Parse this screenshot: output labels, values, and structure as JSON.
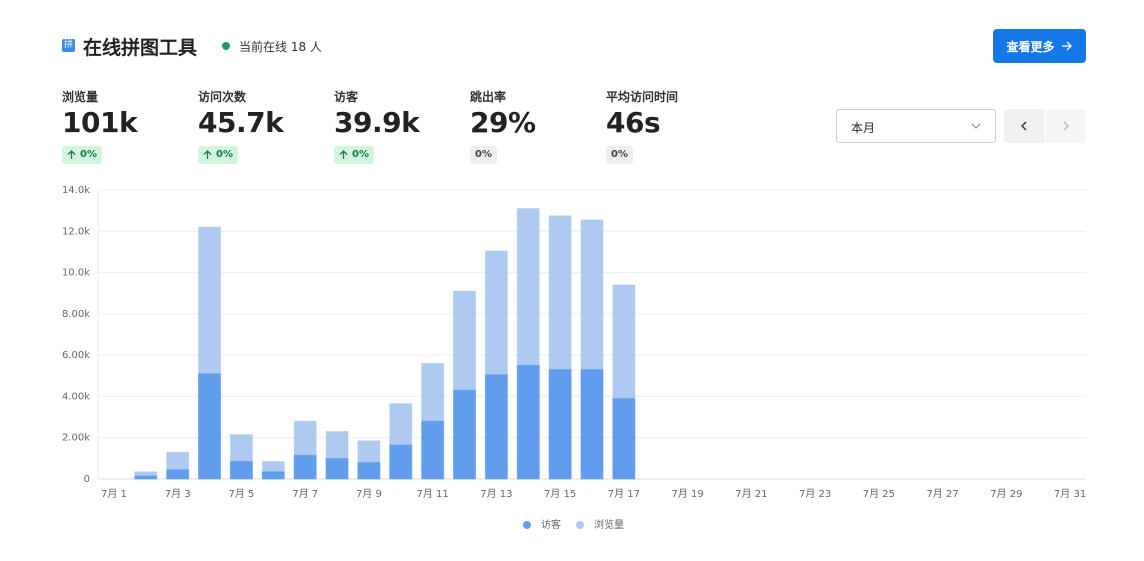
{
  "header": {
    "icon": "拼",
    "title": "在线拼图工具",
    "online": "当前在线 18 人",
    "button": "查看更多"
  },
  "stats": [
    {
      "label": "浏览量",
      "value": "101k",
      "change": "0%",
      "up": true
    },
    {
      "label": "访问次数",
      "value": "45.7k",
      "change": "0%",
      "up": true
    },
    {
      "label": "访客",
      "value": "39.9k",
      "change": "0%",
      "up": true
    },
    {
      "label": "跳出率",
      "value": "29%",
      "change": "0%",
      "up": false
    },
    {
      "label": "平均访问时间",
      "value": "46s",
      "change": "0%",
      "up": false
    }
  ],
  "period": "本月",
  "chart_data": {
    "type": "bar",
    "categories": [
      "7月 1",
      null,
      "7月 3",
      null,
      "7月 5",
      null,
      "7月 7",
      null,
      "7月 9",
      null,
      "7月 11",
      null,
      "7月 13",
      null,
      "7月 15",
      null,
      "7月 17",
      null,
      "7月 19",
      null,
      "7月 21",
      null,
      "7月 23",
      null,
      "7月 25",
      null,
      "7月 27",
      null,
      "7月 29",
      null,
      "7月 31"
    ],
    "series": [
      {
        "name": "访客",
        "color": "#5f9ef0",
        "values": [
          0,
          150,
          450,
          5100,
          850,
          350,
          1150,
          1000,
          800,
          1650,
          2800,
          4300,
          5050,
          5500,
          5300,
          5300,
          3900,
          0,
          0,
          0,
          0,
          0,
          0,
          0,
          0,
          0,
          0,
          0,
          0,
          0,
          0
        ]
      },
      {
        "name": "浏览量",
        "color": "#aecbf6",
        "values": [
          0,
          350,
          1300,
          12200,
          2150,
          850,
          2800,
          2300,
          1850,
          3650,
          5600,
          9100,
          11050,
          13100,
          12750,
          12550,
          9400,
          0,
          0,
          0,
          0,
          0,
          0,
          0,
          0,
          0,
          0,
          0,
          0,
          0,
          0
        ]
      }
    ],
    "ylim": [
      0,
      14000
    ],
    "yticks": [
      0,
      {
        "value": 2000,
        "label": "2.00k"
      },
      {
        "value": 4000,
        "label": "4.00k"
      },
      {
        "value": 6000,
        "label": "6.00k"
      },
      {
        "value": 8000,
        "label": "8.00k"
      },
      {
        "value": 10000,
        "label": "10.0k"
      },
      {
        "value": 12000,
        "label": "12.0k"
      },
      {
        "value": 14000,
        "label": "14.0k"
      }
    ],
    "grid": true,
    "legend": "bottom",
    "overlap": true
  }
}
